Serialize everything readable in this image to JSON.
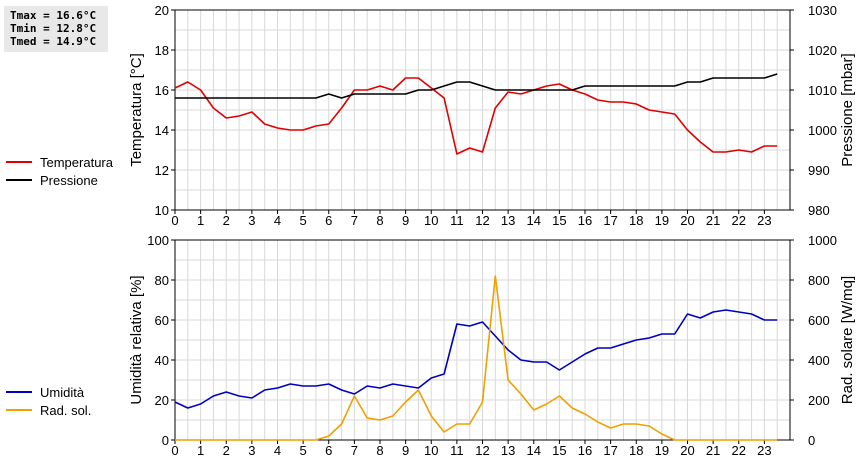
{
  "stats": {
    "tmax": "Tmax = 16.6°C",
    "tmin": "Tmin = 12.8°C",
    "tmed": "Tmed = 14.9°C"
  },
  "colors": {
    "temperature": "#e00000",
    "pressure": "#000000",
    "humidity": "#0000c0",
    "radiation": "#f0a000",
    "grid": "#d8d8d8"
  },
  "legend_top": [
    {
      "label": "Temperatura",
      "color": "#e00000"
    },
    {
      "label": "Pressione",
      "color": "#000000"
    }
  ],
  "legend_bottom": [
    {
      "label": "Umidità",
      "color": "#0000c0"
    },
    {
      "label": "Rad. sol.",
      "color": "#f0a000"
    }
  ],
  "chart_data": [
    {
      "type": "line",
      "xlim": [
        0,
        24
      ],
      "xticks": [
        0,
        1,
        2,
        3,
        4,
        5,
        6,
        7,
        8,
        9,
        10,
        11,
        12,
        13,
        14,
        15,
        16,
        17,
        18,
        19,
        20,
        21,
        22,
        23
      ],
      "grid": true,
      "left_axis": {
        "label": "Temperatura [°C]",
        "ylim": [
          10,
          20
        ],
        "ticks": [
          10,
          12,
          14,
          16,
          18,
          20
        ]
      },
      "right_axis": {
        "label": "Pressione [mbar]",
        "ylim": [
          980,
          1030
        ],
        "ticks": [
          980,
          990,
          1000,
          1010,
          1020,
          1030
        ]
      },
      "series": [
        {
          "name": "Temperatura",
          "axis": "left",
          "color": "#e00000",
          "x": [
            0,
            0.5,
            1,
            1.5,
            2,
            2.5,
            3,
            3.5,
            4,
            4.5,
            5,
            5.5,
            6,
            6.5,
            7,
            7.5,
            8,
            8.5,
            9,
            9.5,
            10,
            10.5,
            11,
            11.5,
            12,
            12.5,
            13,
            13.5,
            14,
            14.5,
            15,
            15.5,
            16,
            16.5,
            17,
            17.5,
            18,
            18.5,
            19,
            19.5,
            20,
            20.5,
            21,
            21.5,
            22,
            22.5,
            23,
            23.5
          ],
          "y": [
            16.1,
            16.4,
            16.0,
            15.1,
            14.6,
            14.7,
            14.9,
            14.3,
            14.1,
            14.0,
            14.0,
            14.2,
            14.3,
            15.1,
            16.0,
            16.0,
            16.2,
            16.0,
            16.6,
            16.6,
            16.1,
            15.6,
            12.8,
            13.1,
            12.9,
            15.1,
            15.9,
            15.8,
            16.0,
            16.2,
            16.3,
            16.0,
            15.8,
            15.5,
            15.4,
            15.4,
            15.3,
            15.0,
            14.9,
            14.8,
            14.0,
            13.4,
            12.9,
            12.9,
            13.0,
            12.9,
            13.2,
            13.2
          ]
        },
        {
          "name": "Pressione",
          "axis": "right",
          "color": "#000000",
          "x": [
            0,
            0.5,
            1,
            1.5,
            2,
            2.5,
            3,
            3.5,
            4,
            4.5,
            5,
            5.5,
            6,
            6.5,
            7,
            7.5,
            8,
            8.5,
            9,
            9.5,
            10,
            10.5,
            11,
            11.5,
            12,
            12.5,
            13,
            13.5,
            14,
            14.5,
            15,
            15.5,
            16,
            16.5,
            17,
            17.5,
            18,
            18.5,
            19,
            19.5,
            20,
            20.5,
            21,
            21.5,
            22,
            22.5,
            23,
            23.5
          ],
          "y": [
            1008,
            1008,
            1008,
            1008,
            1008,
            1008,
            1008,
            1008,
            1008,
            1008,
            1008,
            1008,
            1009,
            1008,
            1009,
            1009,
            1009,
            1009,
            1009,
            1010,
            1010,
            1011,
            1012,
            1012,
            1011,
            1010,
            1010,
            1010,
            1010,
            1010,
            1010,
            1010,
            1011,
            1011,
            1011,
            1011,
            1011,
            1011,
            1011,
            1011,
            1012,
            1012,
            1013,
            1013,
            1013,
            1013,
            1013,
            1014
          ]
        }
      ]
    },
    {
      "type": "line",
      "xlim": [
        0,
        24
      ],
      "xticks": [
        0,
        1,
        2,
        3,
        4,
        5,
        6,
        7,
        8,
        9,
        10,
        11,
        12,
        13,
        14,
        15,
        16,
        17,
        18,
        19,
        20,
        21,
        22,
        23
      ],
      "grid": true,
      "left_axis": {
        "label": "Umidità relativa [%]",
        "ylim": [
          0,
          100
        ],
        "ticks": [
          0,
          20,
          40,
          60,
          80,
          100
        ]
      },
      "right_axis": {
        "label": "Rad. solare [W/mq]",
        "ylim": [
          0,
          1000
        ],
        "ticks": [
          0,
          200,
          400,
          600,
          800,
          1000
        ]
      },
      "series": [
        {
          "name": "Umidità",
          "axis": "left",
          "color": "#0000c0",
          "x": [
            0,
            0.5,
            1,
            1.5,
            2,
            2.5,
            3,
            3.5,
            4,
            4.5,
            5,
            5.5,
            6,
            6.5,
            7,
            7.5,
            8,
            8.5,
            9,
            9.5,
            10,
            10.5,
            11,
            11.5,
            12,
            12.5,
            13,
            13.5,
            14,
            14.5,
            15,
            15.5,
            16,
            16.5,
            17,
            17.5,
            18,
            18.5,
            19,
            19.5,
            20,
            20.5,
            21,
            21.5,
            22,
            22.5,
            23,
            23.5
          ],
          "y": [
            19,
            16,
            18,
            22,
            24,
            22,
            21,
            25,
            26,
            28,
            27,
            27,
            28,
            25,
            23,
            27,
            26,
            28,
            27,
            26,
            31,
            33,
            58,
            57,
            59,
            52,
            45,
            40,
            39,
            39,
            35,
            39,
            43,
            46,
            46,
            48,
            50,
            51,
            53,
            53,
            63,
            61,
            64,
            65,
            64,
            63,
            60,
            60
          ]
        },
        {
          "name": "Rad. sol.",
          "axis": "right",
          "color": "#f0a000",
          "x": [
            0,
            0.5,
            1,
            1.5,
            2,
            2.5,
            3,
            3.5,
            4,
            4.5,
            5,
            5.5,
            6,
            6.5,
            7,
            7.5,
            8,
            8.5,
            9,
            9.5,
            10,
            10.5,
            11,
            11.5,
            12,
            12.5,
            13,
            13.5,
            14,
            14.5,
            15,
            15.5,
            16,
            16.5,
            17,
            17.5,
            18,
            18.5,
            19,
            19.5,
            20,
            20.5,
            21,
            21.5,
            22,
            22.5,
            23,
            23.5
          ],
          "y": [
            0,
            0,
            0,
            0,
            0,
            0,
            0,
            0,
            0,
            0,
            0,
            0,
            20,
            80,
            220,
            110,
            100,
            120,
            190,
            250,
            120,
            40,
            80,
            80,
            190,
            820,
            300,
            230,
            150,
            180,
            220,
            160,
            130,
            90,
            60,
            80,
            80,
            70,
            30,
            0,
            0,
            0,
            0,
            0,
            0,
            0,
            0,
            0
          ]
        }
      ]
    }
  ]
}
